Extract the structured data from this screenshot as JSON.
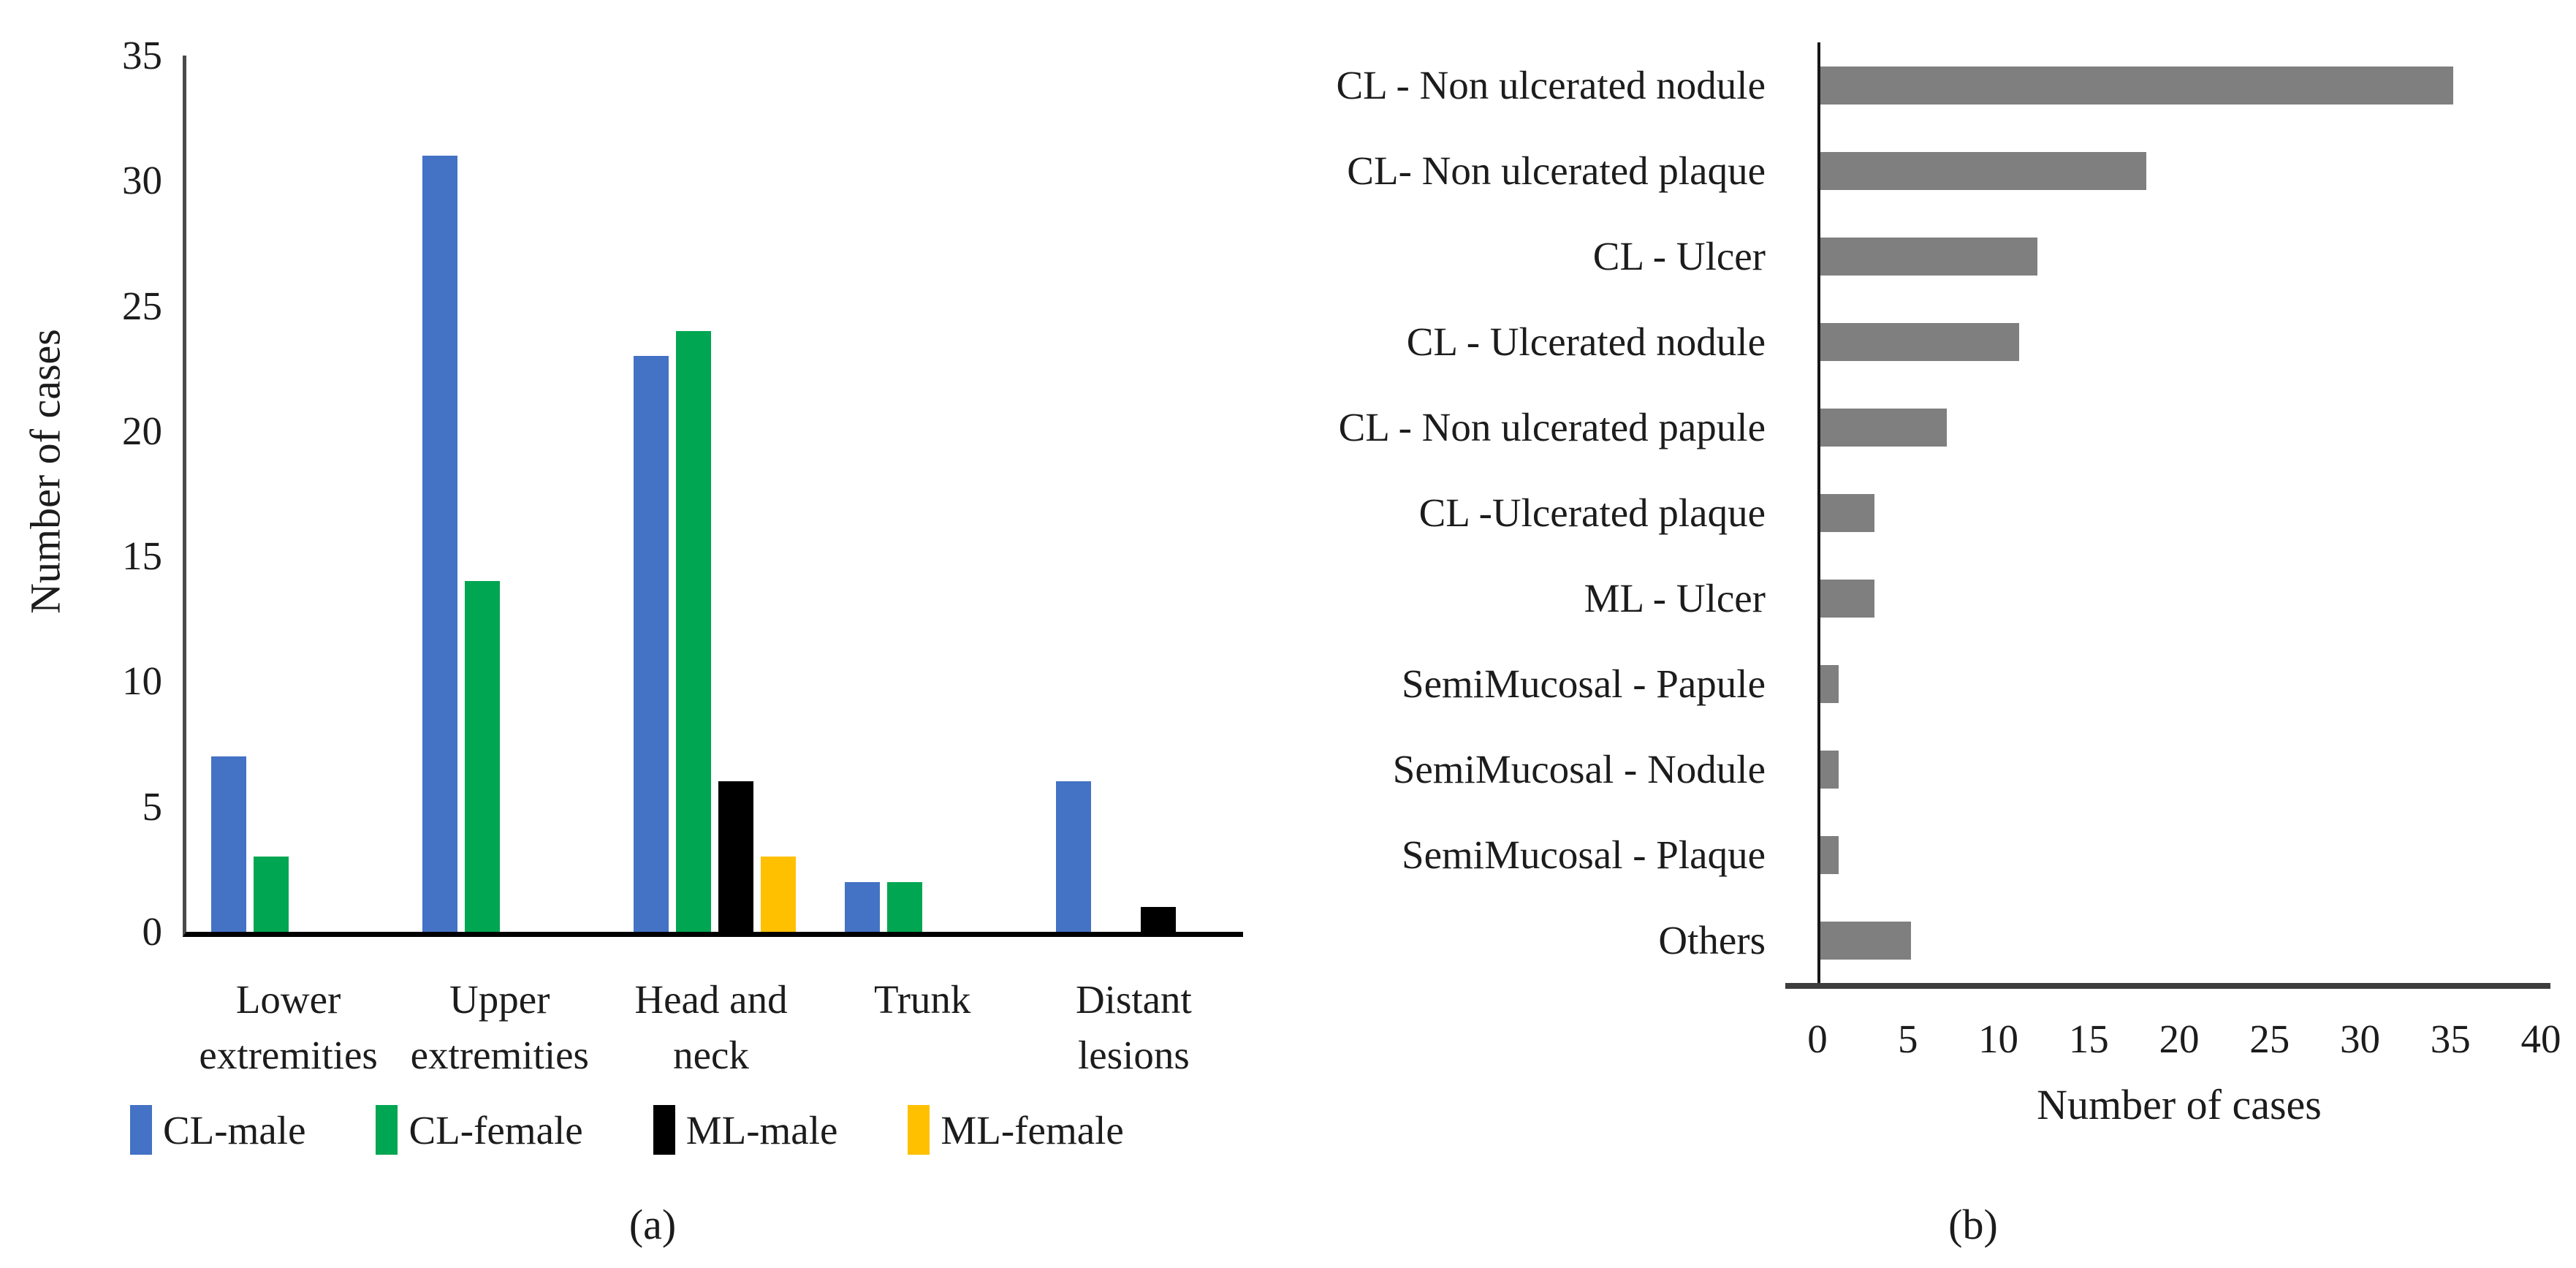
{
  "chart_data": [
    {
      "type": "bar",
      "panel_label": "(a)",
      "title": "",
      "xlabel": "",
      "ylabel": "Number of cases",
      "ylim": [
        0,
        35
      ],
      "y_tick_step": 5,
      "y_ticks": [
        35,
        30,
        25,
        20,
        15,
        10,
        5,
        0
      ],
      "categories": [
        "Lower extremities",
        "Upper extremities",
        "Head and neck",
        "Trunk",
        "Distant lesions"
      ],
      "category_lines": [
        [
          "Lower",
          "extremities"
        ],
        [
          "Upper",
          "extremities"
        ],
        [
          "Head and",
          "neck"
        ],
        [
          "Trunk"
        ],
        [
          "Distant",
          "lesions"
        ]
      ],
      "series": [
        {
          "name": "CL-male",
          "color": "#4472C4",
          "values": [
            7,
            31,
            23,
            2,
            6
          ]
        },
        {
          "name": "CL-female",
          "color": "#00A651",
          "values": [
            3,
            14,
            24,
            2,
            0
          ]
        },
        {
          "name": "ML-male",
          "color": "#000000",
          "values": [
            0,
            0,
            6,
            0,
            1
          ]
        },
        {
          "name": "ML-female",
          "color": "#FFC000",
          "values": [
            0,
            0,
            3,
            0,
            0
          ]
        }
      ],
      "grid": false,
      "legend_position": "bottom"
    },
    {
      "type": "bar-horizontal",
      "panel_label": "(b)",
      "title": "",
      "xlabel": "Number of cases",
      "ylabel": "",
      "xlim": [
        0,
        40
      ],
      "x_tick_step": 5,
      "x_ticks": [
        0,
        5,
        10,
        15,
        20,
        25,
        30,
        35,
        40
      ],
      "bar_color": "#7F7F7F",
      "categories": [
        "CL - Non ulcerated nodule",
        "CL- Non ulcerated plaque",
        "CL - Ulcer",
        "CL - Ulcerated nodule",
        "CL - Non ulcerated papule",
        "CL -Ulcerated plaque",
        "ML - Ulcer",
        "SemiMucosal - Papule",
        "SemiMucosal - Nodule",
        "SemiMucosal - Plaque",
        "Others"
      ],
      "values": [
        35,
        18,
        12,
        11,
        7,
        3,
        3,
        1,
        1,
        1,
        5
      ],
      "grid": false
    }
  ]
}
